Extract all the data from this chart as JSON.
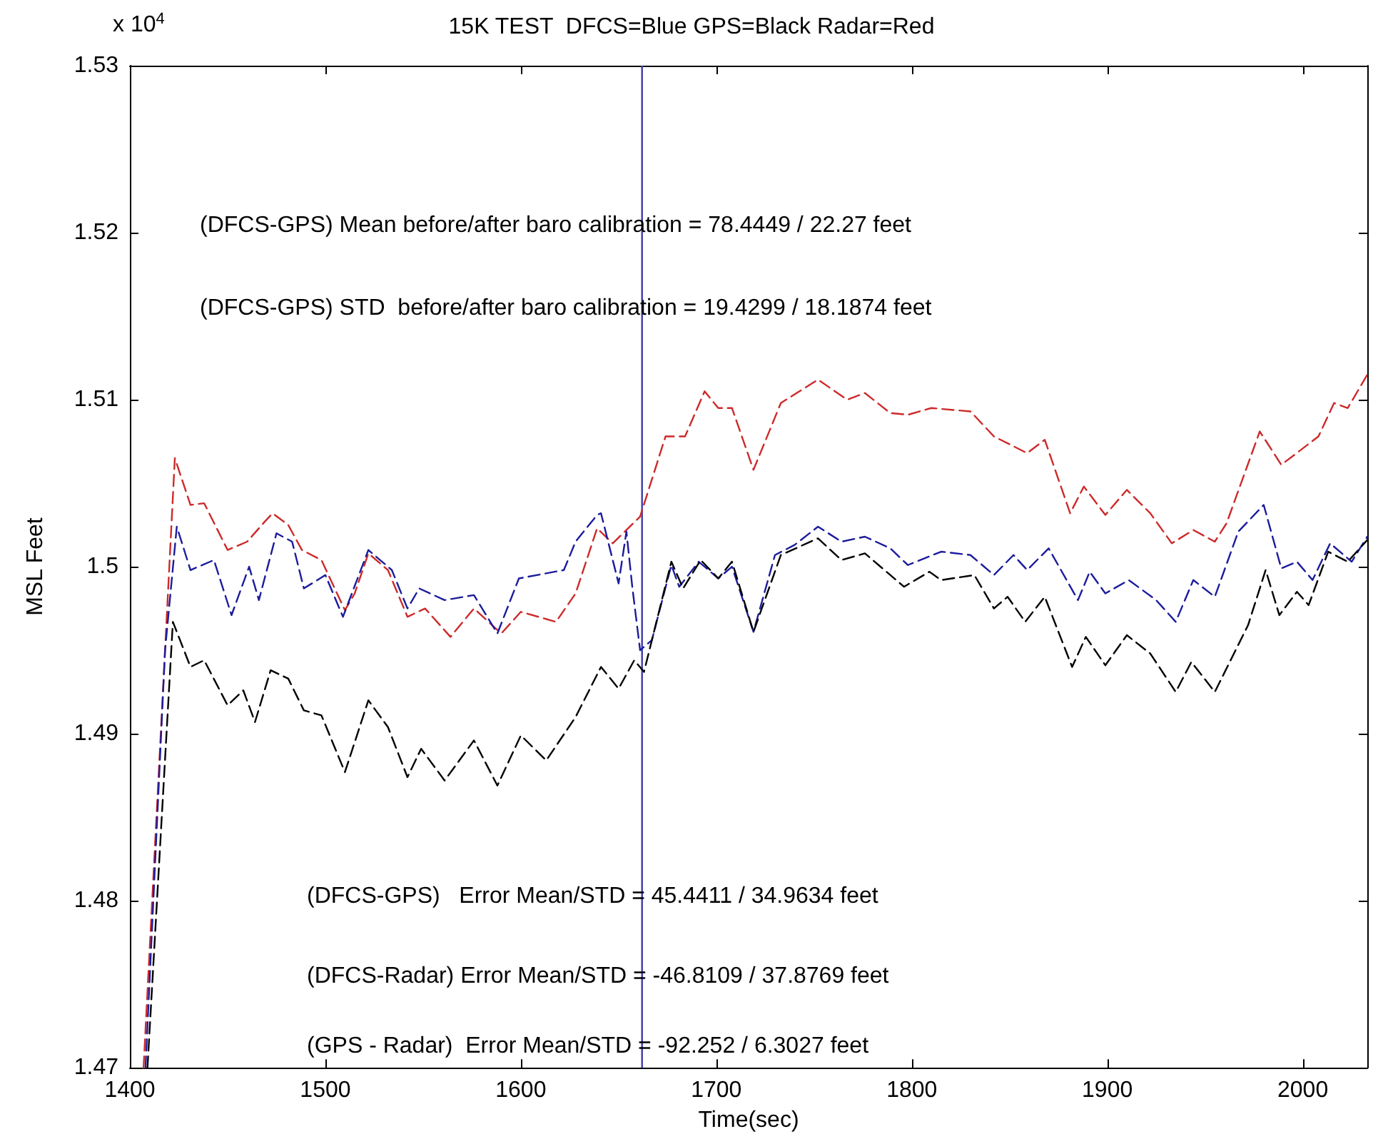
{
  "chart_data": {
    "type": "line",
    "title": "15K TEST  DFCS=Blue GPS=Black Radar=Red",
    "xlabel": "Time(sec)",
    "ylabel": "MSL Feet",
    "annotations": [
      "x 10$^{4}$",
      "(DFCS-GPS) Mean before/after baro calibration = 78.4449 / 22.27 feet",
      "(DFCS-GPS) STD  before/after baro calibration = 19.4299 / 18.1874 feet",
      "(DFCS-GPS)   Error Mean/STD = 45.4411 / 34.9634 feet",
      "(DFCS-Radar) Error Mean/STD = -46.8109 / 37.8769 feet",
      "(GPS - Radar)  Error Mean/STD = -92.252 / 6.3027 feet"
    ],
    "xlim": [
      1400,
      2033
    ],
    "xticks": [
      1400,
      1500,
      1600,
      1700,
      1800,
      1900,
      2000
    ],
    "ylim": [
      1.47,
      1.53
    ],
    "yticks": [
      1.47,
      1.48,
      1.49,
      1.5,
      1.51,
      1.52,
      1.53
    ],
    "grid": false,
    "marker": "none",
    "line_style": "dashed",
    "ref_lines": [
      {
        "axis": "x",
        "value": 1662,
        "label": null,
        "color": "#3c3ca8",
        "line_style": "solid"
      }
    ],
    "series": [
      {
        "color": "#cc2a2a",
        "x": [
          1407,
          1418,
          1423,
          1431,
          1438,
          1450,
          1460,
          1469,
          1473,
          1481,
          1488,
          1498,
          1510,
          1515,
          1522,
          1532,
          1542,
          1551,
          1564,
          1576,
          1590,
          1600,
          1618,
          1628,
          1639,
          1647,
          1661,
          1674,
          1684,
          1694,
          1701,
          1708,
          1719,
          1733,
          1752,
          1767,
          1776,
          1789,
          1798,
          1810,
          1830,
          1842,
          1859,
          1868,
          1881,
          1888,
          1899,
          1910,
          1922,
          1933,
          1944,
          1955,
          1961,
          1978,
          1989,
          2008,
          2016,
          2023,
          2033
        ],
        "values": [
          1.47,
          1.495,
          1.5065,
          1.5037,
          1.5038,
          1.501,
          1.5015,
          1.5027,
          1.5032,
          1.5025,
          1.501,
          1.5004,
          1.4974,
          1.4984,
          1.5008,
          1.4998,
          1.497,
          1.4975,
          1.4958,
          1.4975,
          1.496,
          1.4973,
          1.4967,
          1.4984,
          1.5023,
          1.5014,
          1.503,
          1.5078,
          1.5078,
          1.5105,
          1.5095,
          1.5095,
          1.5058,
          1.5098,
          1.5112,
          1.51,
          1.5104,
          1.5092,
          1.5091,
          1.5095,
          1.5093,
          1.5078,
          1.5068,
          1.5076,
          1.5032,
          1.5048,
          1.5031,
          1.5046,
          1.5032,
          1.5014,
          1.5022,
          1.5015,
          1.5026,
          1.5081,
          1.5061,
          1.5078,
          1.5098,
          1.5095,
          1.5115
        ]
      },
      {
        "color": "#1c1c9c",
        "x": [
          1408,
          1418,
          1424,
          1431,
          1443,
          1452,
          1461,
          1466,
          1475,
          1483,
          1489,
          1500,
          1509,
          1522,
          1534,
          1542,
          1548,
          1561,
          1576,
          1588,
          1599,
          1622,
          1628,
          1639,
          1641,
          1650,
          1654,
          1657,
          1661,
          1667,
          1677,
          1681,
          1691,
          1701,
          1708,
          1719,
          1730,
          1740,
          1752,
          1764,
          1776,
          1789,
          1798,
          1815,
          1830,
          1842,
          1852,
          1859,
          1870,
          1885,
          1891,
          1899,
          1911,
          1925,
          1935,
          1944,
          1955,
          1967,
          1980,
          1989,
          1997,
          2005,
          2014,
          2025,
          2033
        ],
        "values": [
          1.47,
          1.495,
          1.5024,
          1.4998,
          1.5004,
          1.4971,
          1.5,
          1.498,
          1.502,
          1.5015,
          1.4987,
          1.4995,
          1.497,
          1.501,
          1.4998,
          1.4975,
          1.4987,
          1.498,
          1.4983,
          1.496,
          1.4993,
          1.4998,
          1.5015,
          1.5031,
          1.5032,
          1.499,
          1.5021,
          1.4988,
          1.495,
          1.4956,
          1.5001,
          1.4988,
          1.5003,
          1.4993,
          1.5,
          1.4961,
          1.5007,
          1.5013,
          1.5024,
          1.5015,
          1.5018,
          1.5011,
          1.5001,
          1.5009,
          1.5007,
          1.4995,
          1.5007,
          1.4998,
          1.5011,
          1.498,
          1.4997,
          1.4984,
          1.4992,
          1.498,
          1.4967,
          1.4992,
          1.4982,
          1.5021,
          1.5037,
          1.4999,
          1.5003,
          1.4992,
          1.5014,
          1.5003,
          1.5018
        ]
      },
      {
        "color": "#000000",
        "x": [
          1409,
          1422,
          1431,
          1438,
          1450,
          1458,
          1464,
          1472,
          1481,
          1489,
          1498,
          1510,
          1522,
          1532,
          1542,
          1549,
          1561,
          1576,
          1588,
          1600,
          1613,
          1628,
          1641,
          1650,
          1658,
          1663,
          1670,
          1677,
          1683,
          1692,
          1701,
          1708,
          1719,
          1733,
          1752,
          1764,
          1776,
          1796,
          1809,
          1815,
          1832,
          1842,
          1849,
          1858,
          1868,
          1882,
          1889,
          1899,
          1910,
          1922,
          1935,
          1943,
          1955,
          1972,
          1981,
          1988,
          1997,
          2003,
          2013,
          2023,
          2033
        ],
        "values": [
          1.47,
          1.4967,
          1.494,
          1.4944,
          1.4917,
          1.4926,
          1.4907,
          1.4938,
          1.4933,
          1.4914,
          1.4911,
          1.4877,
          1.492,
          1.4904,
          1.4874,
          1.4891,
          1.4872,
          1.4896,
          1.4869,
          1.4899,
          1.4884,
          1.491,
          1.494,
          1.4927,
          1.4944,
          1.4937,
          1.497,
          1.5003,
          1.4987,
          1.5004,
          1.4993,
          1.5003,
          1.4961,
          1.5007,
          1.5017,
          1.5004,
          1.5008,
          1.4988,
          1.4997,
          1.4992,
          1.4995,
          1.4975,
          1.4982,
          1.4967,
          1.4982,
          1.494,
          1.4958,
          1.4941,
          1.4959,
          1.4948,
          1.4925,
          1.4943,
          1.4925,
          1.4965,
          1.4998,
          1.4971,
          1.4985,
          1.4977,
          1.5009,
          1.5003,
          1.5016
        ]
      }
    ]
  }
}
